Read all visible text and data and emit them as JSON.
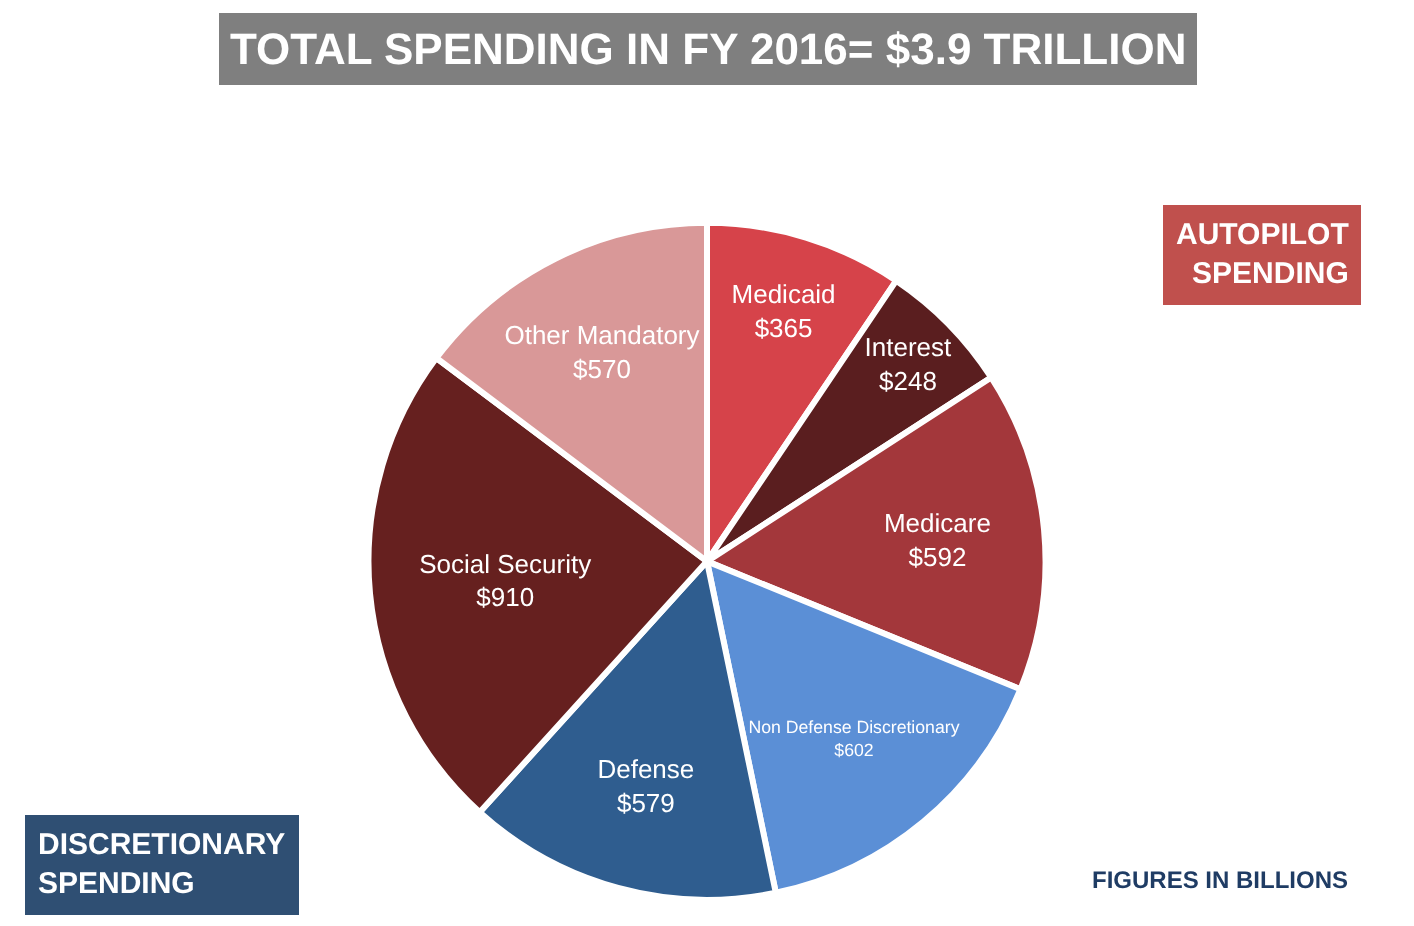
{
  "chart_data": {
    "type": "pie",
    "title": "TOTAL SPENDING IN FY 2016= $3.9 TRILLION",
    "categories": [
      "Medicaid",
      "Interest",
      "Medicare",
      "Non Defense Discretionary",
      "Defense",
      "Social Security",
      "Other Mandatory"
    ],
    "values": [
      365,
      248,
      592,
      602,
      579,
      910,
      570
    ],
    "value_labels": [
      "$365",
      "$248",
      "$592",
      "$602",
      "$579",
      "$910",
      "$570"
    ],
    "colors": [
      "#d6434a",
      "#5a1e1f",
      "#a3373b",
      "#5b8fd6",
      "#2f5d8f",
      "#66201f",
      "#d99898"
    ],
    "annotations": [
      "AUTOPILOT SPENDING",
      "DISCRETIONARY SPENDING",
      "FIGURES IN BILLIONS"
    ],
    "legend": false
  }
}
